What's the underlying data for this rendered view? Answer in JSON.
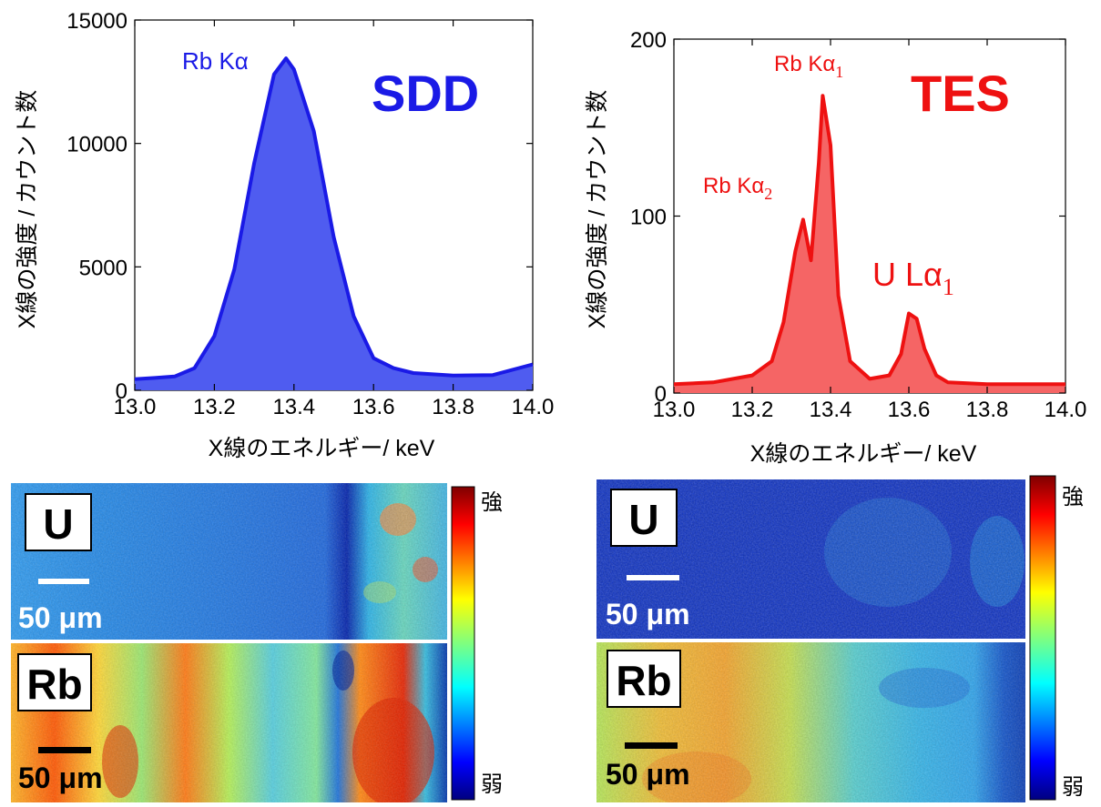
{
  "chart_data": [
    {
      "type": "area",
      "label": "SDD",
      "xlabel": "X線のエネルギー/ keV",
      "ylabel": "X線の強度 / カウント数",
      "xlim": [
        13.0,
        14.0
      ],
      "ylim": [
        0,
        15000
      ],
      "xticks": [
        "13.0",
        "13.2",
        "13.4",
        "13.6",
        "13.8",
        "14.0"
      ],
      "yticks": [
        "0",
        "5000",
        "10000",
        "15000"
      ],
      "grid": false,
      "color": "#1a1ae6",
      "fill": "#4f5cf0",
      "annotations": [
        {
          "text": "Rb Kα"
        }
      ],
      "x": [
        13.0,
        13.05,
        13.1,
        13.15,
        13.2,
        13.25,
        13.3,
        13.35,
        13.38,
        13.4,
        13.45,
        13.5,
        13.55,
        13.6,
        13.65,
        13.7,
        13.8,
        13.9,
        14.0
      ],
      "y": [
        450,
        500,
        560,
        900,
        2200,
        4900,
        9200,
        12800,
        13450,
        13000,
        10500,
        6200,
        3000,
        1300,
        900,
        700,
        600,
        620,
        1050
      ]
    },
    {
      "type": "area",
      "label": "TES",
      "xlabel": "X線のエネルギー/ keV",
      "ylabel": "X線の強度 / カウント数",
      "xlim": [
        13.0,
        14.0
      ],
      "ylim": [
        0,
        200
      ],
      "xticks": [
        "13.0",
        "13.2",
        "13.4",
        "13.6",
        "13.8",
        "14.0"
      ],
      "yticks": [
        "0",
        "100",
        "200"
      ],
      "grid": false,
      "color": "#ee1111",
      "fill": "#f56565",
      "annotations": [
        {
          "text": "Rb Kα",
          "sub": "2"
        },
        {
          "text": "Rb Kα",
          "sub": "1"
        },
        {
          "text": "U Lα",
          "sub": "1"
        }
      ],
      "x": [
        13.0,
        13.1,
        13.2,
        13.25,
        13.28,
        13.31,
        13.33,
        13.35,
        13.37,
        13.38,
        13.4,
        13.42,
        13.45,
        13.5,
        13.55,
        13.58,
        13.6,
        13.62,
        13.64,
        13.67,
        13.7,
        13.8,
        13.9,
        14.0
      ],
      "y": [
        5,
        6,
        10,
        18,
        40,
        80,
        98,
        75,
        130,
        168,
        140,
        55,
        18,
        8,
        10,
        22,
        45,
        42,
        25,
        10,
        6,
        5,
        5,
        5
      ]
    }
  ],
  "maps": [
    {
      "top": {
        "element": "U",
        "scale": "50 μm"
      },
      "bottom": {
        "element": "Rb",
        "scale": "50 μm"
      },
      "colorbar": {
        "high": "強",
        "low": "弱"
      }
    },
    {
      "top": {
        "element": "U",
        "scale": "50 μm"
      },
      "bottom": {
        "element": "Rb",
        "scale": "50 μm"
      },
      "colorbar": {
        "high": "強",
        "low": "弱"
      }
    }
  ]
}
